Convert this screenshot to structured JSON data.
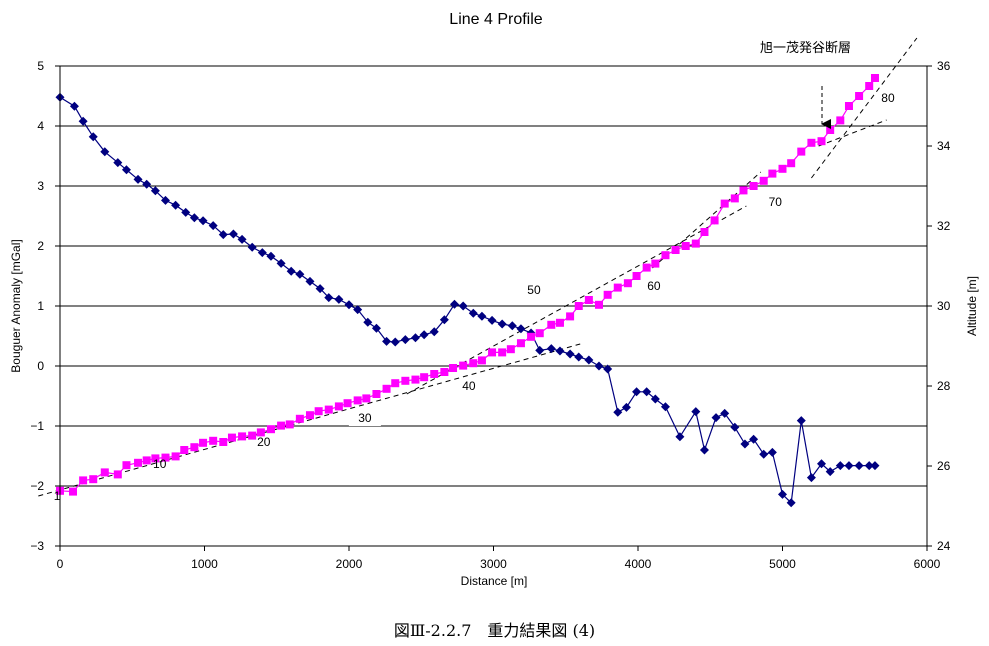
{
  "chart_data": {
    "type": "line",
    "title": "Line 4 Profile",
    "xlabel": "Distance [m]",
    "ylabel_left": "Bouguer Anomaly [mGal]",
    "ylabel_right": "Altitude [m]",
    "xlim": [
      0,
      6000
    ],
    "ylim_left": [
      -3,
      5
    ],
    "ylim_right": [
      24,
      36
    ],
    "x_ticks": [
      "0",
      "1000",
      "2000",
      "3000",
      "4000",
      "5000",
      "6000"
    ],
    "y_left_ticks": [
      "−3",
      "−2",
      "−1",
      "0",
      "1",
      "2",
      "3",
      "4",
      "5"
    ],
    "y_right_ticks": [
      "24",
      "26",
      "28",
      "30",
      "32",
      "34",
      "36"
    ],
    "grid": "horizontal",
    "series": [
      {
        "axis": "left",
        "color": "#000080",
        "marker": "diamond",
        "x": [
          0,
          100,
          160,
          230,
          310,
          400,
          460,
          540,
          600,
          660,
          730,
          800,
          870,
          930,
          990,
          1060,
          1130,
          1200,
          1260,
          1330,
          1400,
          1460,
          1530,
          1600,
          1660,
          1730,
          1800,
          1860,
          1930,
          2000,
          2060,
          2130,
          2190,
          2260,
          2320,
          2390,
          2460,
          2520,
          2590,
          2660,
          2730,
          2790,
          2860,
          2920,
          2990,
          3060,
          3130,
          3190,
          3260,
          3320,
          3400,
          3460,
          3530,
          3590,
          3660,
          3730,
          3790,
          3860,
          3920,
          3990,
          4060,
          4120,
          4190,
          4290,
          4400,
          4460,
          4540,
          4600,
          4670,
          4740,
          4800,
          4870,
          4930,
          5000,
          5060,
          5130,
          5200,
          5270,
          5330,
          5400,
          5460,
          5530,
          5600,
          5640
        ],
        "y": [
          4.48,
          4.33,
          4.08,
          3.82,
          3.57,
          3.39,
          3.27,
          3.11,
          3.03,
          2.92,
          2.76,
          2.68,
          2.56,
          2.47,
          2.42,
          2.34,
          2.19,
          2.2,
          2.11,
          1.98,
          1.89,
          1.83,
          1.71,
          1.58,
          1.53,
          1.41,
          1.29,
          1.14,
          1.11,
          1.02,
          0.94,
          0.73,
          0.63,
          0.41,
          0.4,
          0.44,
          0.47,
          0.52,
          0.57,
          0.77,
          1.03,
          1.0,
          0.88,
          0.83,
          0.76,
          0.7,
          0.67,
          0.62,
          0.55,
          0.26,
          0.29,
          0.25,
          0.2,
          0.15,
          0.1,
          0.0,
          -0.05,
          -0.77,
          -0.69,
          -0.43,
          -0.43,
          -0.55,
          -0.68,
          -1.18,
          -0.76,
          -1.4,
          -0.86,
          -0.79,
          -1.02,
          -1.3,
          -1.22,
          -1.47,
          -1.44,
          -2.14,
          -2.28,
          -0.91,
          -1.86,
          -1.63,
          -1.76,
          -1.66,
          -1.66,
          -1.66,
          -1.66,
          -1.66
        ]
      },
      {
        "axis": "right",
        "color": "#ff00ff",
        "marker": "square",
        "x": [
          0,
          90,
          160,
          230,
          310,
          400,
          460,
          540,
          600,
          660,
          730,
          800,
          860,
          930,
          990,
          1060,
          1130,
          1190,
          1260,
          1330,
          1390,
          1460,
          1530,
          1590,
          1660,
          1730,
          1790,
          1860,
          1930,
          1990,
          2060,
          2120,
          2190,
          2260,
          2320,
          2390,
          2460,
          2520,
          2590,
          2660,
          2720,
          2790,
          2860,
          2920,
          2990,
          3060,
          3120,
          3190,
          3260,
          3320,
          3400,
          3460,
          3530,
          3590,
          3660,
          3730,
          3790,
          3860,
          3930,
          3990,
          4060,
          4120,
          4190,
          4260,
          4330,
          4400,
          4460,
          4530,
          4600,
          4670,
          4730,
          4800,
          4870,
          4930,
          5000,
          5060,
          5130,
          5200,
          5270,
          5330,
          5400,
          5460,
          5530,
          5600,
          5640
        ],
        "y": [
          25.38,
          25.36,
          25.64,
          25.67,
          25.84,
          25.79,
          26.02,
          26.08,
          26.14,
          26.19,
          26.21,
          26.24,
          26.4,
          26.47,
          26.58,
          26.63,
          26.6,
          26.71,
          26.74,
          26.76,
          26.84,
          26.92,
          27.01,
          27.04,
          27.18,
          27.27,
          27.37,
          27.41,
          27.49,
          27.57,
          27.64,
          27.69,
          27.8,
          27.93,
          28.07,
          28.13,
          28.16,
          28.22,
          28.3,
          28.35,
          28.45,
          28.51,
          28.57,
          28.64,
          28.84,
          28.84,
          28.92,
          29.07,
          29.23,
          29.32,
          29.53,
          29.58,
          29.74,
          30.0,
          30.15,
          30.03,
          30.28,
          30.46,
          30.57,
          30.75,
          30.96,
          31.06,
          31.27,
          31.4,
          31.5,
          31.56,
          31.85,
          32.14,
          32.56,
          32.69,
          32.89,
          33.0,
          33.13,
          33.31,
          33.43,
          33.57,
          33.86,
          34.08,
          34.12,
          34.4,
          34.64,
          35.0,
          35.25,
          35.5,
          35.7
        ]
      }
    ],
    "annotations": {
      "station_labels": [
        "1",
        "10",
        "20",
        "30",
        "40",
        "50",
        "60",
        "70",
        "80"
      ],
      "fault_label": "旭一茂発谷断層"
    }
  },
  "caption": "図Ⅲ-2.2.7　重力結果図 (4)"
}
